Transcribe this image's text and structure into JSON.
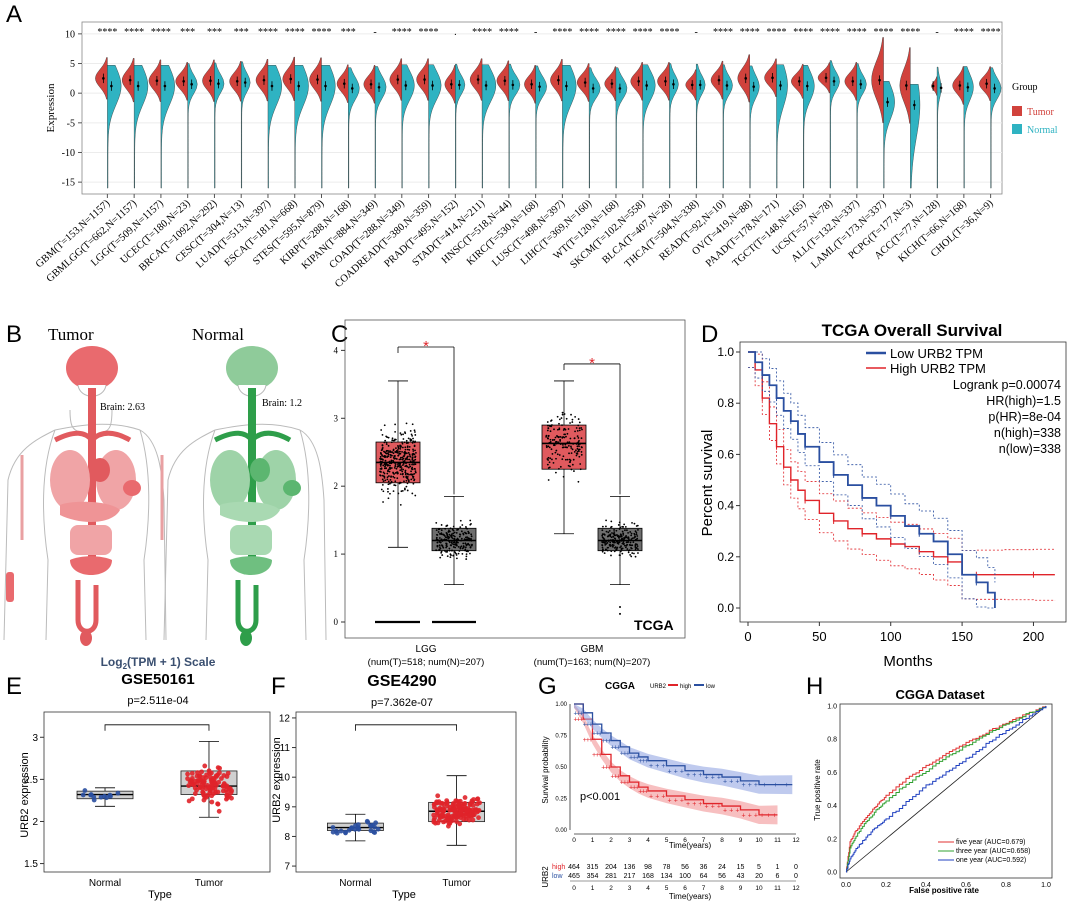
{
  "panels": {
    "A": "A",
    "B": "B",
    "C": "C",
    "D": "D",
    "E": "E",
    "F": "F",
    "G": "G",
    "H": "H"
  },
  "colors": {
    "tumor": "#d1423c",
    "normal": "#2fb3c2",
    "lowLine": "#2a4fa0",
    "highLine": "#e0242a",
    "boxTumor": "#e05a5e",
    "boxNormal": "#6e6e6e"
  },
  "panelA": {
    "ylabel": "Expression",
    "ylim": [
      -17,
      12
    ],
    "yticks": [
      10,
      5,
      0,
      -5,
      -10,
      -15
    ],
    "legend_title": "Group",
    "legend": [
      "Tumor",
      "Normal"
    ],
    "categories": [
      {
        "label": "GBM(T=153,N=1157)",
        "sig": "****",
        "t": [
          2.5,
          3.6,
          2.2
        ],
        "n": [
          1.2,
          4.5,
          5.8
        ]
      },
      {
        "label": "GBMLGG(T=662,N=1157)",
        "sig": "****",
        "t": [
          2.2,
          3.5,
          2.3
        ],
        "n": [
          1.2,
          4.5,
          5.8
        ]
      },
      {
        "label": "LGG(T=509,N=1157)",
        "sig": "****",
        "t": [
          2.1,
          3.4,
          2.2
        ],
        "n": [
          1.2,
          4.5,
          5.8
        ]
      },
      {
        "label": "UCEC(T=180,N=23)",
        "sig": "***",
        "t": [
          2.0,
          3.2,
          2.0
        ],
        "n": [
          1.5,
          3.0,
          2.5
        ]
      },
      {
        "label": "BRCA(T=1092,N=292)",
        "sig": "***",
        "t": [
          2.1,
          3.2,
          2.2
        ],
        "n": [
          1.6,
          3.0,
          2.8
        ]
      },
      {
        "label": "CESC(T=304,N=13)",
        "sig": "***",
        "t": [
          2.0,
          3.1,
          2.1
        ],
        "n": [
          1.8,
          2.8,
          2.2
        ]
      },
      {
        "label": "LUAD(T=513,N=397)",
        "sig": "****",
        "t": [
          2.2,
          3.5,
          2.2
        ],
        "n": [
          1.2,
          4.8,
          5.8
        ]
      },
      {
        "label": "ESCA(T=181,N=668)",
        "sig": "****",
        "t": [
          2.4,
          3.5,
          2.3
        ],
        "n": [
          1.2,
          4.8,
          6.0
        ]
      },
      {
        "label": "STES(T=595,N=879)",
        "sig": "****",
        "t": [
          2.3,
          3.4,
          2.3
        ],
        "n": [
          1.2,
          4.5,
          6.0
        ]
      },
      {
        "label": "KIRP(T=288,N=168)",
        "sig": "***",
        "t": [
          1.6,
          3.0,
          2.0
        ],
        "n": [
          0.8,
          3.5,
          3.5
        ]
      },
      {
        "label": "KIPAN(T=884,N=349)",
        "sig": "-",
        "t": [
          1.5,
          3.0,
          2.0
        ],
        "n": [
          1.0,
          3.5,
          3.5
        ]
      },
      {
        "label": "COAD(T=288,N=349)",
        "sig": "****",
        "t": [
          2.3,
          3.3,
          2.2
        ],
        "n": [
          1.3,
          4.0,
          4.5
        ]
      },
      {
        "label": "COADREAD(T=380,N=359)",
        "sig": "****",
        "t": [
          2.3,
          3.3,
          2.2
        ],
        "n": [
          1.3,
          4.0,
          4.5
        ]
      },
      {
        "label": "PRAD(T=495,N=152)",
        "sig": ".",
        "t": [
          1.5,
          2.8,
          2.0
        ],
        "n": [
          1.4,
          3.0,
          2.5
        ]
      },
      {
        "label": "STAD(T=414,N=211)",
        "sig": "****",
        "t": [
          2.3,
          3.4,
          2.2
        ],
        "n": [
          1.3,
          4.5,
          5.0
        ]
      },
      {
        "label": "HNSC(T=518,N=44)",
        "sig": "****",
        "t": [
          2.1,
          3.4,
          2.1
        ],
        "n": [
          1.4,
          3.5,
          3.0
        ]
      },
      {
        "label": "KIRC(T=530,N=168)",
        "sig": "-",
        "t": [
          1.5,
          3.0,
          2.0
        ],
        "n": [
          1.1,
          3.5,
          3.2
        ]
      },
      {
        "label": "LUSC(T=498,N=397)",
        "sig": "****",
        "t": [
          2.2,
          3.5,
          2.2
        ],
        "n": [
          1.2,
          4.8,
          5.8
        ]
      },
      {
        "label": "LIHC(T=369,N=160)",
        "sig": "****",
        "t": [
          1.8,
          3.2,
          2.0
        ],
        "n": [
          0.8,
          3.5,
          3.0
        ]
      },
      {
        "label": "WT(T=120,N=168)",
        "sig": "****",
        "t": [
          1.6,
          3.0,
          1.8
        ],
        "n": [
          0.8,
          3.5,
          3.2
        ]
      },
      {
        "label": "SKCM(T=102,N=558)",
        "sig": "****",
        "t": [
          2.0,
          3.2,
          2.0
        ],
        "n": [
          1.3,
          4.0,
          4.5
        ]
      },
      {
        "label": "BLCA(T=407,N=28)",
        "sig": "****",
        "t": [
          2.0,
          3.2,
          2.0
        ],
        "n": [
          1.5,
          2.8,
          2.0
        ]
      },
      {
        "label": "THCA(T=504,N=338)",
        "sig": "-",
        "t": [
          1.4,
          2.8,
          1.6
        ],
        "n": [
          1.4,
          2.8,
          1.8
        ]
      },
      {
        "label": "READ(T=92,N=10)",
        "sig": "****",
        "t": [
          2.2,
          3.3,
          2.0
        ],
        "n": [
          1.3,
          3.0,
          2.5
        ]
      },
      {
        "label": "OV(T=419,N=88)",
        "sig": "****",
        "t": [
          2.5,
          4.2,
          2.5
        ],
        "n": [
          1.1,
          3.0,
          3.5
        ]
      },
      {
        "label": "PAAD(T=178,N=171)",
        "sig": "****",
        "t": [
          2.6,
          7.0,
          2.0
        ],
        "n": [
          1.3,
          3.5,
          6.5
        ]
      },
      {
        "label": "TGCT(T=148,N=165)",
        "sig": "****",
        "t": [
          2.0,
          3.8,
          1.8
        ],
        "n": [
          1.2,
          3.5,
          4.5
        ]
      },
      {
        "label": "UCS(T=57,N=78)",
        "sig": "****",
        "t": [
          2.6,
          3.2,
          1.6
        ],
        "n": [
          2.0,
          3.0,
          1.5
        ]
      },
      {
        "label": "ALL(T=132,N=337)",
        "sig": "****",
        "t": [
          2.0,
          3.2,
          2.0
        ],
        "n": [
          1.5,
          3.0,
          2.2
        ]
      },
      {
        "label": "LAML(T=173,N=337)",
        "sig": "****",
        "t": [
          2.2,
          3.2,
          4.5
        ],
        "n": [
          -1.5,
          3.5,
          5.2
        ]
      },
      {
        "label": "PCPG(T=177,N=3)",
        "sig": "****",
        "t": [
          1.3,
          2.8,
          4.0
        ],
        "n": [
          -2.0,
          3.0,
          10.0
        ]
      },
      {
        "label": "ACC(T=77,N=128)",
        "sig": "-",
        "t": [
          1.2,
          1.5,
          1.0
        ],
        "n": [
          0.9,
          1.2,
          0.8
        ]
      },
      {
        "label": "KICH(T=66,N=168)",
        "sig": "****",
        "t": [
          1.3,
          3.0,
          2.0
        ],
        "n": [
          1.0,
          3.0,
          4.0
        ]
      },
      {
        "label": "CHOL(T=36,N=9)",
        "sig": "****",
        "t": [
          1.6,
          3.0,
          1.8
        ],
        "n": [
          0.8,
          3.3,
          3.2
        ]
      }
    ]
  },
  "panelB": {
    "tumor_title": "Tumor",
    "normal_title": "Normal",
    "tumor_brain": "Brain: 2.63",
    "normal_brain": "Brain: 1.2"
  },
  "panelC": {
    "yticks": [
      0,
      1,
      2,
      3,
      4
    ],
    "ylim": [
      0,
      4.3
    ],
    "groups": [
      {
        "label": "LGG",
        "n": "(num(T)=518; num(N)=207)",
        "tumor": {
          "q1": 2.05,
          "med": 2.35,
          "q3": 2.65,
          "lo": 1.1,
          "hi": 3.55
        },
        "normal": {
          "q1": 1.05,
          "med": 1.2,
          "q3": 1.38,
          "lo": 0.55,
          "hi": 1.85
        }
      },
      {
        "label": "GBM",
        "n": "(num(T)=163; num(N)=207)",
        "tumor": {
          "q1": 2.25,
          "med": 2.63,
          "q3": 2.9,
          "lo": 1.3,
          "hi": 3.55
        },
        "normal": {
          "q1": 1.05,
          "med": 1.2,
          "q3": 1.38,
          "lo": 0.55,
          "hi": 1.85
        }
      }
    ],
    "sig": "*",
    "tag": "TCGA"
  },
  "panelD": {
    "title": "TCGA Overall Survival",
    "ylabel": "Percent survival",
    "xlabel": "Months",
    "xticks": [
      0,
      50,
      100,
      150,
      200
    ],
    "yticks": [
      0.0,
      0.2,
      0.4,
      0.6,
      0.8,
      1.0
    ],
    "xlim": [
      0,
      220
    ],
    "legend": [
      "Low URB2 TPM",
      "High URB2 TPM"
    ],
    "stats": [
      "Logrank p=0.00074",
      "HR(high)=1.5",
      "p(HR)=8e-04",
      "n(high)=338",
      "n(low)=338"
    ],
    "low": {
      "x": [
        0,
        5,
        10,
        15,
        20,
        25,
        30,
        35,
        40,
        50,
        60,
        70,
        80,
        90,
        100,
        110,
        120,
        130,
        140,
        150,
        160,
        168,
        173
      ],
      "y": [
        1.0,
        0.96,
        0.91,
        0.87,
        0.82,
        0.77,
        0.73,
        0.68,
        0.63,
        0.57,
        0.52,
        0.48,
        0.43,
        0.4,
        0.36,
        0.32,
        0.29,
        0.26,
        0.21,
        0.13,
        0.1,
        0.06,
        0.0
      ]
    },
    "high": {
      "x": [
        0,
        5,
        10,
        15,
        20,
        25,
        30,
        35,
        40,
        50,
        60,
        70,
        80,
        90,
        100,
        110,
        120,
        130,
        140,
        150,
        160,
        180,
        200,
        215
      ],
      "y": [
        1.0,
        0.93,
        0.82,
        0.72,
        0.63,
        0.55,
        0.5,
        0.46,
        0.42,
        0.37,
        0.34,
        0.31,
        0.29,
        0.27,
        0.25,
        0.24,
        0.22,
        0.2,
        0.18,
        0.13,
        0.13,
        0.13,
        0.13,
        0.13
      ]
    }
  },
  "panelE": {
    "scale": "Log2(TPM + 1) Scale",
    "scale_pre": "Log",
    "scale_sub": "2",
    "scale_post": "(TPM + 1) Scale",
    "title": "GSE50161",
    "pvalue": "p=2.511e-04",
    "ylabel": "URB2 expression",
    "xlabel": "Type",
    "categories": [
      "Normal",
      "Tumor"
    ],
    "yticks": [
      1.5,
      2.0,
      2.5,
      3.0
    ],
    "ylim": [
      1.4,
      3.3
    ],
    "normal": {
      "q1": 2.27,
      "med": 2.32,
      "q3": 2.36,
      "lo": 2.18,
      "hi": 2.4
    },
    "tumor": {
      "q1": 2.32,
      "med": 2.42,
      "q3": 2.6,
      "lo": 2.05,
      "hi": 2.95
    }
  },
  "panelF": {
    "title": "GSE4290",
    "pvalue": "p=7.362e-07",
    "ylabel": "URB2 expression",
    "xlabel": "Type",
    "categories": [
      "Normal",
      "Tumor"
    ],
    "yticks": [
      7,
      8,
      9,
      10,
      11,
      12
    ],
    "ylim": [
      6.8,
      12.2
    ],
    "normal": {
      "q1": 8.2,
      "med": 8.3,
      "q3": 8.45,
      "lo": 7.85,
      "hi": 8.75
    },
    "tumor": {
      "q1": 8.5,
      "med": 8.85,
      "q3": 9.15,
      "lo": 7.7,
      "hi": 10.05
    }
  },
  "panelG": {
    "title": "CGGA",
    "legend_label": "URB2",
    "legend": [
      "high",
      "low"
    ],
    "ylabel": "Survival probability",
    "xlabel": "Time(years)",
    "pvalue": "p<0.001",
    "xticks": [
      0,
      1,
      2,
      3,
      4,
      5,
      6,
      7,
      8,
      9,
      10,
      11,
      12
    ],
    "yticks": [
      0.0,
      0.25,
      0.5,
      0.75,
      1.0
    ],
    "xlim": [
      0,
      12
    ],
    "high": {
      "x": [
        0,
        0.5,
        1,
        1.5,
        2,
        2.5,
        3,
        3.5,
        4,
        5,
        6,
        7,
        8,
        9,
        10,
        11
      ],
      "y": [
        1.0,
        0.88,
        0.72,
        0.6,
        0.5,
        0.43,
        0.38,
        0.34,
        0.31,
        0.27,
        0.24,
        0.21,
        0.19,
        0.16,
        0.12,
        0.12
      ]
    },
    "low": {
      "x": [
        0,
        0.5,
        1,
        1.5,
        2,
        2.5,
        3,
        3.5,
        4,
        5,
        6,
        7,
        8,
        9,
        10,
        11.8
      ],
      "y": [
        1.0,
        0.93,
        0.84,
        0.77,
        0.71,
        0.66,
        0.61,
        0.58,
        0.55,
        0.51,
        0.47,
        0.44,
        0.42,
        0.39,
        0.36,
        0.36
      ]
    },
    "risk_label": "URB2",
    "risk_high_label": "high",
    "risk_low_label": "low",
    "risk_high": [
      "464",
      "315",
      "204",
      "136",
      "98",
      "78",
      "56",
      "36",
      "24",
      "15",
      "5",
      "1",
      "0"
    ],
    "risk_low": [
      "465",
      "354",
      "281",
      "217",
      "168",
      "134",
      "100",
      "64",
      "56",
      "43",
      "20",
      "6",
      "0"
    ]
  },
  "panelH": {
    "title": "CGGA Dataset",
    "ylabel": "True positive rate",
    "xlabel": "False positive rate",
    "ticks": [
      0.0,
      0.2,
      0.4,
      0.6,
      0.8,
      1.0
    ],
    "legend": [
      "five year (AUC=0.679)",
      "three year (AUC=0.658)",
      "one year (AUC=0.592)"
    ],
    "curves": [
      {
        "name": "five year",
        "color": "#e03030",
        "x": [
          0,
          0.02,
          0.05,
          0.1,
          0.15,
          0.2,
          0.3,
          0.4,
          0.5,
          0.6,
          0.7,
          0.8,
          0.9,
          1.0
        ],
        "y": [
          0,
          0.18,
          0.25,
          0.33,
          0.4,
          0.46,
          0.56,
          0.64,
          0.71,
          0.78,
          0.84,
          0.9,
          0.95,
          1.0
        ]
      },
      {
        "name": "three year",
        "color": "#30a030",
        "x": [
          0,
          0.02,
          0.05,
          0.1,
          0.15,
          0.2,
          0.3,
          0.4,
          0.5,
          0.6,
          0.7,
          0.8,
          0.9,
          1.0
        ],
        "y": [
          0,
          0.14,
          0.22,
          0.3,
          0.37,
          0.43,
          0.53,
          0.61,
          0.69,
          0.76,
          0.83,
          0.89,
          0.95,
          1.0
        ]
      },
      {
        "name": "one year",
        "color": "#2040c0",
        "x": [
          0,
          0.02,
          0.05,
          0.1,
          0.15,
          0.2,
          0.3,
          0.4,
          0.5,
          0.6,
          0.7,
          0.8,
          0.9,
          1.0
        ],
        "y": [
          0,
          0.08,
          0.14,
          0.21,
          0.27,
          0.32,
          0.42,
          0.52,
          0.6,
          0.68,
          0.77,
          0.85,
          0.93,
          1.0
        ]
      }
    ]
  }
}
